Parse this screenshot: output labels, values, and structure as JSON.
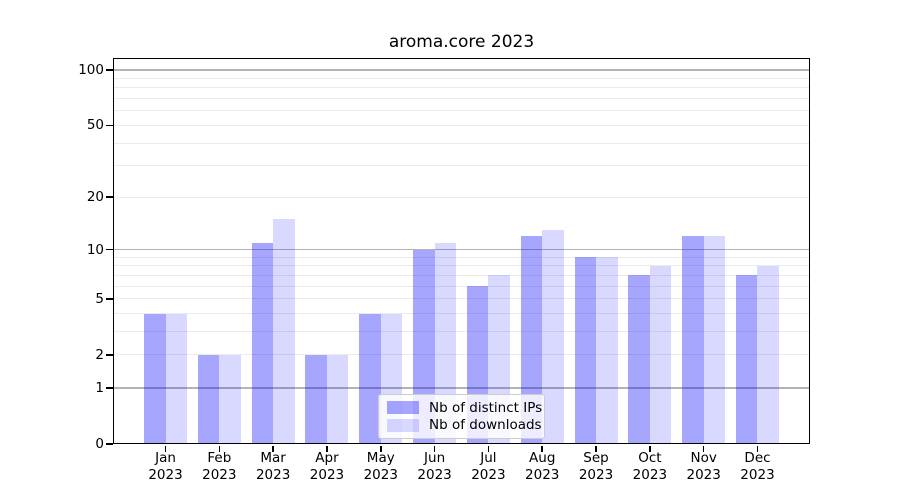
{
  "chart_data": {
    "type": "bar",
    "title": "aroma.core 2023",
    "categories": [
      "Jan",
      "Feb",
      "Mar",
      "Apr",
      "May",
      "Jun",
      "Jul",
      "Aug",
      "Sep",
      "Oct",
      "Nov",
      "Dec"
    ],
    "year_label": "2023",
    "series": [
      {
        "name": "Nb of distinct IPs",
        "color": "rgba(0,0,255,0.35)",
        "values": [
          4,
          2,
          11,
          2,
          4,
          10,
          6,
          12,
          9,
          7,
          12,
          7
        ]
      },
      {
        "name": "Nb of downloads",
        "color": "rgba(0,0,255,0.15)",
        "values": [
          4,
          2,
          15,
          2,
          4,
          11,
          7,
          13,
          9,
          8,
          12,
          8
        ]
      }
    ],
    "y_axis": {
      "scale": "log1p",
      "ylim": [
        0,
        100
      ],
      "tick_values": [
        100,
        50,
        20,
        10,
        5,
        2,
        1,
        0
      ],
      "tick_labels": [
        "100",
        "50",
        "20",
        "10",
        "5",
        "2",
        "1",
        "0"
      ],
      "major_gridlines": [
        1,
        10,
        100
      ],
      "minor_gridlines": [
        2,
        3,
        4,
        5,
        6,
        7,
        8,
        9,
        20,
        30,
        40,
        50,
        60,
        70,
        80,
        90
      ]
    },
    "x_axis": {
      "tick_labels_line1": [
        "Jan",
        "Feb",
        "Mar",
        "Apr",
        "May",
        "Jun",
        "Jul",
        "Aug",
        "Sep",
        "Oct",
        "Nov",
        "Dec"
      ],
      "tick_labels_line2": "2023"
    },
    "legend": {
      "position": "lower center",
      "items": [
        {
          "label": "Nb of distinct IPs"
        },
        {
          "label": "Nb of downloads"
        }
      ]
    },
    "grid": "on"
  },
  "colors": {
    "bar_distinct_ips": "rgba(0,0,255,0.35)",
    "bar_downloads": "rgba(0,0,255,0.15)",
    "gridline_major": "#b4b4b4",
    "gridline_minor": "#ebebeb",
    "axis": "#000000",
    "background": "#ffffff"
  }
}
